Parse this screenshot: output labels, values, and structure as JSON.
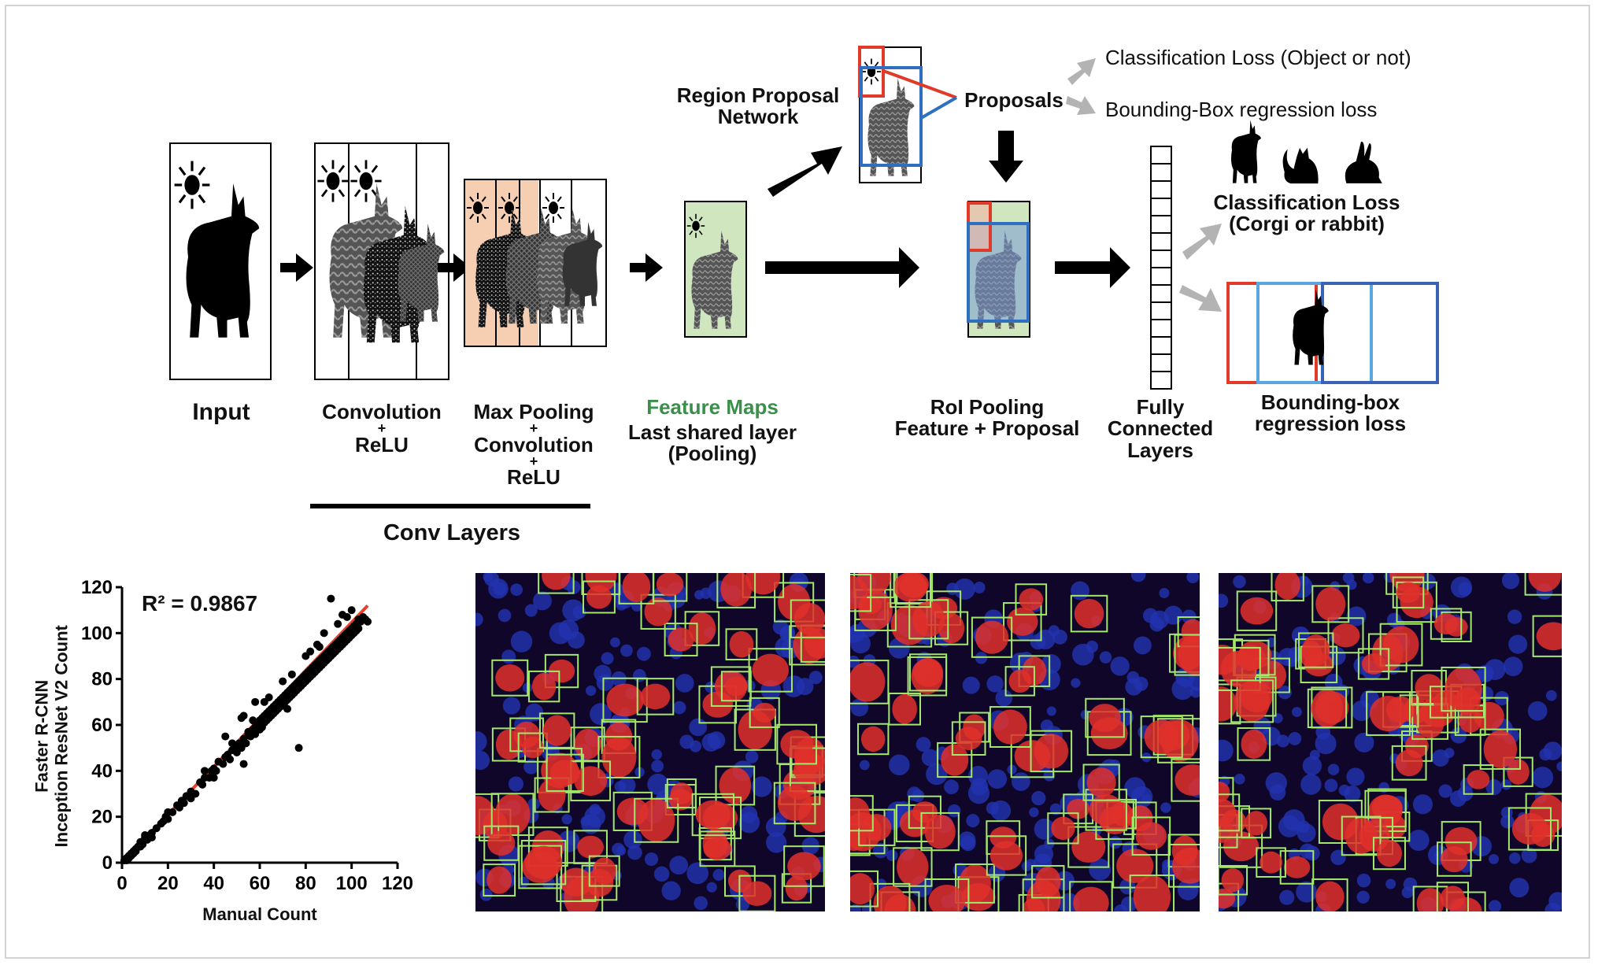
{
  "labels": {
    "input": "Input",
    "conv_relu": [
      "Convolution",
      "+",
      "ReLU"
    ],
    "maxpool_conv_relu": [
      "Max Pooling",
      "+",
      "Convolution",
      "+",
      "ReLU"
    ],
    "conv_layers": "Conv Layers",
    "feature_maps": "Feature Maps",
    "last_shared_layer": [
      "Last shared layer",
      "(Pooling)"
    ],
    "region_proposal_network": [
      "Region Proposal",
      "Network"
    ],
    "proposals": "Proposals",
    "roi_pooling": [
      "RoI Pooling",
      "Feature + Proposal"
    ],
    "fully_connected": [
      "Fully",
      "Connected",
      "Layers"
    ],
    "classification_loss_object": "Classification Loss (Object or not)",
    "bbox_regression_loss_rpn": "Bounding-Box regression loss",
    "classification_loss_class": [
      "Classification Loss",
      "(Corgi or rabbit)"
    ],
    "bbox_regression_loss": [
      "Bounding-box",
      "regression loss"
    ]
  },
  "colors": {
    "feature_maps_text": "#3a8f4a",
    "feature_map_fill": "#cfe6bf",
    "pool_fill": "#f6cfb3",
    "proposal_red": "#e03a2a",
    "proposal_blue": "#2e6fc0",
    "arrow_gray": "#b3b3b3",
    "fit_line": "#e8412a"
  },
  "chart_data": {
    "type": "scatter",
    "title": "",
    "annotation": "R² = 0.9867",
    "xlabel": "Manual Count",
    "ylabel": [
      "Faster  R-CNN",
      "Inception ResNet V2 Count"
    ],
    "xlim": [
      0,
      120
    ],
    "ylim": [
      0,
      120
    ],
    "xticks": [
      0,
      20,
      40,
      60,
      80,
      100,
      120
    ],
    "yticks": [
      0,
      20,
      40,
      60,
      80,
      100,
      120
    ],
    "fit_line": [
      [
        0,
        0
      ],
      [
        107,
        112
      ]
    ],
    "points": [
      [
        1,
        1
      ],
      [
        2,
        2
      ],
      [
        2,
        1
      ],
      [
        3,
        3
      ],
      [
        3,
        2
      ],
      [
        4,
        4
      ],
      [
        4,
        3
      ],
      [
        5,
        5
      ],
      [
        5,
        4
      ],
      [
        6,
        6
      ],
      [
        6,
        5
      ],
      [
        7,
        7
      ],
      [
        8,
        7
      ],
      [
        8,
        9
      ],
      [
        9,
        8
      ],
      [
        10,
        11
      ],
      [
        11,
        10
      ],
      [
        12,
        12
      ],
      [
        13,
        13
      ],
      [
        15,
        15
      ],
      [
        17,
        17
      ],
      [
        19,
        20
      ],
      [
        20,
        19
      ],
      [
        22,
        22
      ],
      [
        24,
        25
      ],
      [
        25,
        24
      ],
      [
        27,
        26
      ],
      [
        28,
        29
      ],
      [
        30,
        31
      ],
      [
        32,
        30
      ],
      [
        34,
        35
      ],
      [
        35,
        34
      ],
      [
        36,
        37
      ],
      [
        38,
        37
      ],
      [
        39,
        40
      ],
      [
        40,
        41
      ],
      [
        41,
        40
      ],
      [
        42,
        44
      ],
      [
        44,
        43
      ],
      [
        45,
        46
      ],
      [
        46,
        47
      ],
      [
        47,
        45
      ],
      [
        48,
        49
      ],
      [
        49,
        50
      ],
      [
        50,
        48
      ],
      [
        51,
        52
      ],
      [
        52,
        50
      ],
      [
        53,
        43
      ],
      [
        53,
        54
      ],
      [
        54,
        52
      ],
      [
        55,
        56
      ],
      [
        55,
        57
      ],
      [
        56,
        55
      ],
      [
        57,
        58
      ],
      [
        57,
        62
      ],
      [
        58,
        59
      ],
      [
        58,
        56
      ],
      [
        59,
        60
      ],
      [
        59,
        61
      ],
      [
        60,
        62
      ],
      [
        60,
        58
      ],
      [
        61,
        59
      ],
      [
        61,
        63
      ],
      [
        62,
        64
      ],
      [
        62,
        61
      ],
      [
        63,
        65
      ],
      [
        63,
        62
      ],
      [
        64,
        66
      ],
      [
        64,
        63
      ],
      [
        65,
        67
      ],
      [
        65,
        64
      ],
      [
        66,
        68
      ],
      [
        66,
        65
      ],
      [
        67,
        69
      ],
      [
        67,
        66
      ],
      [
        68,
        70
      ],
      [
        68,
        67
      ],
      [
        69,
        71
      ],
      [
        69,
        68
      ],
      [
        70,
        72
      ],
      [
        70,
        69
      ],
      [
        71,
        73
      ],
      [
        71,
        70
      ],
      [
        72,
        74
      ],
      [
        72,
        71
      ],
      [
        72,
        67
      ],
      [
        73,
        75
      ],
      [
        73,
        72
      ],
      [
        74,
        76
      ],
      [
        74,
        73
      ],
      [
        75,
        77
      ],
      [
        75,
        74
      ],
      [
        76,
        78
      ],
      [
        76,
        75
      ],
      [
        77,
        79
      ],
      [
        77,
        76
      ],
      [
        78,
        80
      ],
      [
        78,
        77
      ],
      [
        79,
        81
      ],
      [
        79,
        78
      ],
      [
        80,
        82
      ],
      [
        80,
        79
      ],
      [
        81,
        83
      ],
      [
        81,
        80
      ],
      [
        82,
        84
      ],
      [
        82,
        81
      ],
      [
        83,
        85
      ],
      [
        83,
        82
      ],
      [
        84,
        86
      ],
      [
        84,
        83
      ],
      [
        85,
        87
      ],
      [
        85,
        84
      ],
      [
        86,
        88
      ],
      [
        86,
        85
      ],
      [
        87,
        89
      ],
      [
        87,
        86
      ],
      [
        88,
        90
      ],
      [
        88,
        87
      ],
      [
        89,
        91
      ],
      [
        89,
        88
      ],
      [
        90,
        92
      ],
      [
        90,
        89
      ],
      [
        91,
        93
      ],
      [
        91,
        90
      ],
      [
        92,
        94
      ],
      [
        92,
        91
      ],
      [
        93,
        95
      ],
      [
        93,
        92
      ],
      [
        94,
        96
      ],
      [
        94,
        93
      ],
      [
        95,
        97
      ],
      [
        95,
        94
      ],
      [
        96,
        98
      ],
      [
        96,
        95
      ],
      [
        97,
        99
      ],
      [
        97,
        96
      ],
      [
        98,
        100
      ],
      [
        98,
        97
      ],
      [
        99,
        101
      ],
      [
        99,
        98
      ],
      [
        100,
        102
      ],
      [
        100,
        99
      ],
      [
        101,
        103
      ],
      [
        101,
        100
      ],
      [
        102,
        104
      ],
      [
        102,
        101
      ],
      [
        103,
        106
      ],
      [
        103,
        102
      ],
      [
        104,
        105
      ],
      [
        105,
        107
      ],
      [
        106,
        106
      ],
      [
        107,
        105
      ],
      [
        100,
        110
      ],
      [
        91,
        115
      ],
      [
        52,
        63
      ],
      [
        45,
        55
      ],
      [
        77,
        50
      ],
      [
        85,
        95
      ],
      [
        88,
        100
      ],
      [
        94,
        104
      ],
      [
        96,
        108
      ],
      [
        98,
        107
      ],
      [
        80,
        90
      ],
      [
        82,
        92
      ],
      [
        70,
        79
      ],
      [
        64,
        72
      ],
      [
        58,
        70
      ],
      [
        53,
        64
      ],
      [
        40,
        37
      ],
      [
        30,
        28
      ],
      [
        20,
        22
      ],
      [
        10,
        12
      ],
      [
        13,
        11
      ],
      [
        18,
        18
      ],
      [
        26,
        27
      ],
      [
        36,
        40
      ],
      [
        48,
        52
      ],
      [
        62,
        70
      ],
      [
        74,
        82
      ],
      [
        86,
        94
      ]
    ]
  }
}
